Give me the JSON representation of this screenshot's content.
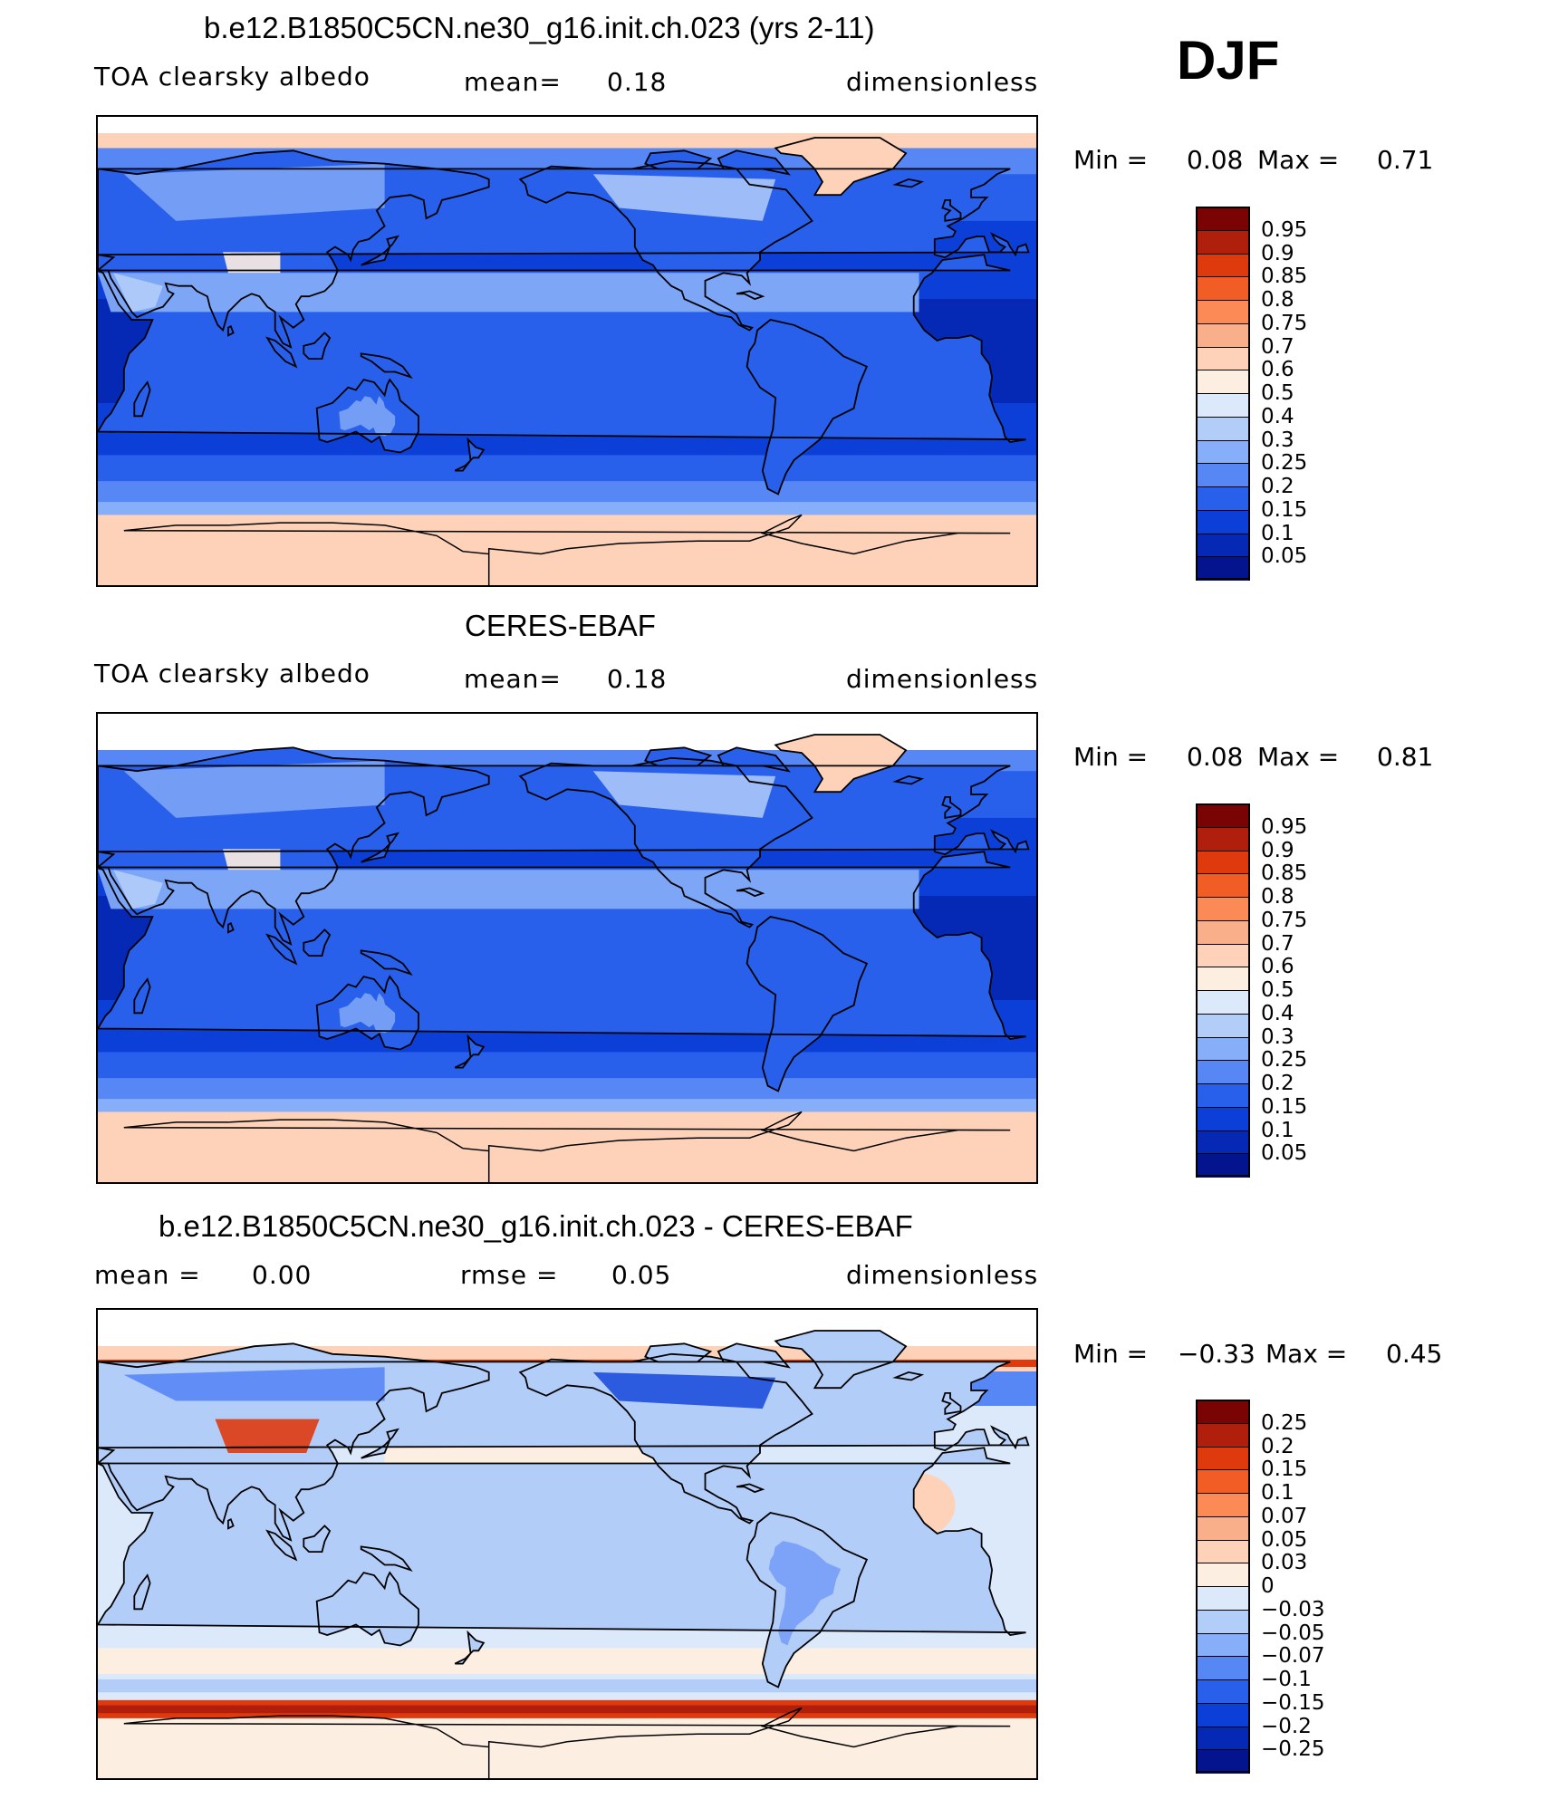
{
  "season": "DJF",
  "chart_data": [
    {
      "type": "heatmap",
      "title": "b.e12.B1850C5CN.ne30_g16.init.ch.023 (yrs 2-11)",
      "variable": "TOA clearsky albedo",
      "stat1_label": "mean=",
      "stat1_value": "0.18",
      "units": "dimensionless",
      "min_label": "Min =",
      "min": "0.08",
      "max_label": "Max =",
      "max": "0.71",
      "colorbar": {
        "levels": [
          "0.95",
          "0.9",
          "0.85",
          "0.8",
          "0.75",
          "0.7",
          "0.6",
          "0.5",
          "0.4",
          "0.3",
          "0.25",
          "0.2",
          "0.15",
          "0.1",
          "0.05"
        ],
        "colors": [
          "#7a0403",
          "#b01f0c",
          "#df3a0e",
          "#f25d26",
          "#fc8a56",
          "#f9b08a",
          "#fdd2b8",
          "#fdeee2",
          "#dbe9fb",
          "#b3cdf9",
          "#87aef8",
          "#5687f5",
          "#2860ec",
          "#0b3fd8",
          "#0629b5",
          "#03148e"
        ]
      },
      "field_colors": {
        "ice": "#fdd2b8",
        "ice_light": "#fdeee2",
        "polar_ocean": "#5687f5",
        "midlat_ocean": "#0b3fd8",
        "tropical_ocean": "#0629b5",
        "land_low": "#2860ec",
        "land_mid": "#87aef8",
        "land_high": "#b3cdf9"
      }
    },
    {
      "type": "heatmap",
      "title": "CERES-EBAF",
      "variable": "TOA clearsky albedo",
      "stat1_label": "mean=",
      "stat1_value": "0.18",
      "units": "dimensionless",
      "min_label": "Min =",
      "min": "0.08",
      "max_label": "Max =",
      "max": "0.81",
      "colorbar": {
        "levels": [
          "0.95",
          "0.9",
          "0.85",
          "0.8",
          "0.75",
          "0.7",
          "0.6",
          "0.5",
          "0.4",
          "0.3",
          "0.25",
          "0.2",
          "0.15",
          "0.1",
          "0.05"
        ],
        "colors": [
          "#7a0403",
          "#b01f0c",
          "#df3a0e",
          "#f25d26",
          "#fc8a56",
          "#f9b08a",
          "#fdd2b8",
          "#fdeee2",
          "#dbe9fb",
          "#b3cdf9",
          "#87aef8",
          "#5687f5",
          "#2860ec",
          "#0b3fd8",
          "#0629b5",
          "#03148e"
        ]
      },
      "field_colors": {
        "ice": "#fdd2b8",
        "ice_light": "#fdeee2",
        "polar_ocean": "#5687f5",
        "midlat_ocean": "#0b3fd8",
        "tropical_ocean": "#0629b5",
        "land_low": "#2860ec",
        "land_mid": "#87aef8",
        "land_high": "#b3cdf9"
      }
    },
    {
      "type": "heatmap",
      "title": "b.e12.B1850C5CN.ne30_g16.init.ch.023 - CERES-EBAF",
      "stat1_label": "mean =",
      "stat1_value": "0.00",
      "stat2_label": "rmse =",
      "stat2_value": "0.05",
      "units": "dimensionless",
      "min_label": "Min =",
      "min": "−0.33",
      "max_label": "Max =",
      "max": "0.45",
      "colorbar": {
        "levels": [
          "0.25",
          "0.2",
          "0.15",
          "0.1",
          "0.07",
          "0.05",
          "0.03",
          "0",
          "−0.03",
          "−0.05",
          "−0.07",
          "−0.1",
          "−0.15",
          "−0.2",
          "−0.25"
        ],
        "colors": [
          "#7a0403",
          "#b01f0c",
          "#df3a0e",
          "#f25d26",
          "#fc8a56",
          "#f9b08a",
          "#fdd2b8",
          "#fdeee2",
          "#dbe9fb",
          "#b3cdf9",
          "#87aef8",
          "#5687f5",
          "#2860ec",
          "#0b3fd8",
          "#0629b5",
          "#03148e"
        ]
      },
      "field_colors": {
        "background": "#dbe9fb",
        "pos_weak": "#fdeee2",
        "pos_mid": "#fdd2b8",
        "pos_strong": "#df3a0e",
        "pos_max": "#b01f0c",
        "neg_weak": "#b3cdf9",
        "neg_mid": "#5687f5",
        "neg_strong": "#0b3fd8"
      }
    }
  ]
}
